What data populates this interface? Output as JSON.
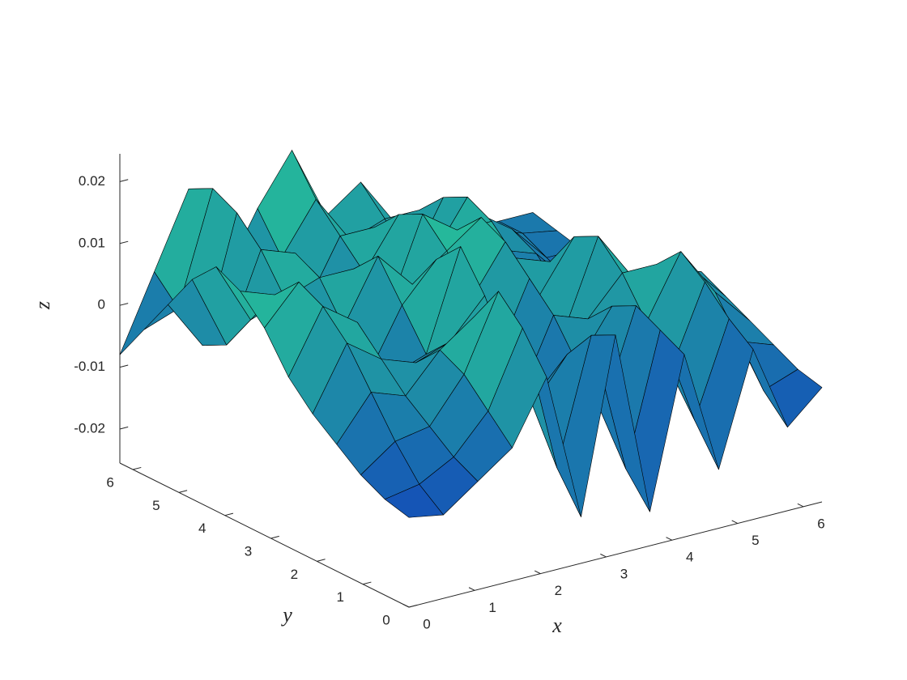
{
  "chart_data": {
    "type": "surface",
    "xlabel": "x",
    "ylabel": "y",
    "zlabel": "z",
    "x": [
      0,
      0.5236,
      1.0472,
      1.5708,
      2.0944,
      2.618,
      3.1416,
      3.6652,
      4.1888,
      4.7124,
      5.236,
      5.7596,
      6.2832
    ],
    "y": [
      0,
      0.5236,
      1.0472,
      1.5708,
      2.0944,
      2.618,
      3.1416,
      3.6652,
      4.1888,
      4.7124,
      5.236,
      5.7596,
      6.2832
    ],
    "z": [
      [
        -0.011,
        -0.012,
        -0.008,
        -0.004,
        0.006,
        -0.018,
        0.01,
        -0.02,
        0.004,
        -0.016,
        0.002,
        -0.012,
        -0.007
      ],
      [
        -0.01,
        -0.009,
        -0.006,
        0.0,
        0.012,
        -0.012,
        0.008,
        -0.015,
        0.006,
        -0.01,
        0.005,
        -0.008,
        -0.006
      ],
      [
        -0.008,
        -0.004,
        -0.003,
        0.004,
        0.016,
        -0.004,
        0.003,
        -0.008,
        0.008,
        -0.004,
        0.009,
        -0.002,
        -0.004
      ],
      [
        -0.005,
        0.002,
        0.0,
        0.006,
        0.01,
        0.002,
        -0.004,
        -0.002,
        0.006,
        0.002,
        0.012,
        0.004,
        -0.002
      ],
      [
        -0.002,
        0.008,
        0.004,
        0.002,
        0.004,
        0.01,
        -0.008,
        0.004,
        0.002,
        0.008,
        0.008,
        0.006,
        0.0
      ],
      [
        0.002,
        0.012,
        0.008,
        -0.002,
        0.0,
        0.016,
        -0.004,
        0.008,
        -0.002,
        0.012,
        0.004,
        0.004,
        0.002
      ],
      [
        0.008,
        0.014,
        0.004,
        -0.004,
        0.006,
        0.012,
        0.004,
        0.012,
        0.002,
        0.01,
        -0.002,
        0.002,
        0.0
      ],
      [
        0.012,
        0.01,
        0.0,
        0.002,
        0.012,
        0.006,
        0.01,
        0.014,
        0.006,
        0.004,
        -0.006,
        -0.002,
        -0.002
      ],
      [
        0.014,
        0.004,
        0.006,
        0.008,
        0.008,
        0.0,
        0.014,
        0.01,
        0.01,
        -0.002,
        -0.004,
        -0.004,
        -0.004
      ],
      [
        0.01,
        -0.002,
        0.012,
        0.01,
        0.002,
        0.004,
        0.012,
        0.004,
        0.012,
        0.002,
        0.0,
        -0.006,
        -0.005
      ],
      [
        0.004,
        -0.004,
        0.016,
        0.006,
        -0.002,
        0.008,
        0.008,
        0.0,
        0.01,
        0.006,
        0.002,
        -0.004,
        -0.004
      ],
      [
        -0.002,
        0.0,
        0.018,
        0.002,
        0.004,
        0.012,
        0.004,
        0.006,
        0.006,
        0.004,
        0.0,
        -0.002,
        -0.003
      ],
      [
        -0.008,
        0.004,
        0.016,
        0.0,
        0.01,
        0.018,
        0.006,
        0.01,
        0.002,
        0.0,
        -0.002,
        -0.002,
        -0.002
      ]
    ],
    "xlim": [
      0,
      6.2832
    ],
    "ylim": [
      0,
      6.2832
    ],
    "zlim": [
      -0.0255,
      0.0245
    ],
    "xticks": [
      0,
      1,
      2,
      3,
      4,
      5,
      6
    ],
    "yticks": [
      0,
      1,
      2,
      3,
      4,
      5,
      6
    ],
    "zticks": [
      -0.02,
      -0.01,
      0,
      0.01,
      0.02
    ],
    "colormap": [
      "#0a12c8",
      "#2ef08c"
    ],
    "edgecolor": "#000000"
  }
}
